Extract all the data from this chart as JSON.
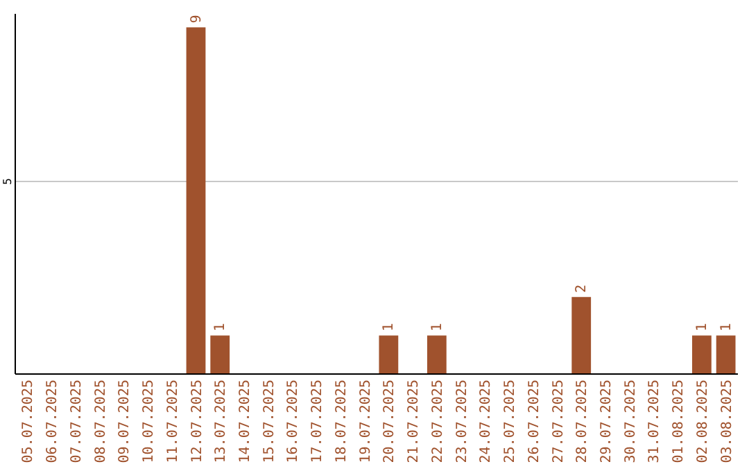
{
  "chart_data": {
    "type": "bar",
    "categories": [
      "05.07.2025",
      "06.07.2025",
      "07.07.2025",
      "08.07.2025",
      "09.07.2025",
      "10.07.2025",
      "11.07.2025",
      "12.07.2025",
      "13.07.2025",
      "14.07.2025",
      "15.07.2025",
      "16.07.2025",
      "17.07.2025",
      "18.07.2025",
      "19.07.2025",
      "20.07.2025",
      "21.07.2025",
      "22.07.2025",
      "23.07.2025",
      "24.07.2025",
      "25.07.2025",
      "26.07.2025",
      "27.07.2025",
      "28.07.2025",
      "29.07.2025",
      "30.07.2025",
      "31.07.2025",
      "01.08.2025",
      "02.08.2025",
      "03.08.2025"
    ],
    "values": [
      0,
      0,
      0,
      0,
      0,
      0,
      0,
      9,
      1,
      0,
      0,
      0,
      0,
      0,
      0,
      1,
      0,
      1,
      0,
      0,
      0,
      0,
      0,
      2,
      0,
      0,
      0,
      0,
      1,
      1
    ],
    "value_labels": [
      null,
      null,
      null,
      null,
      null,
      null,
      null,
      "9",
      "1",
      null,
      null,
      null,
      null,
      null,
      null,
      "1",
      null,
      "1",
      null,
      null,
      null,
      null,
      null,
      "2",
      null,
      null,
      null,
      null,
      "1",
      "1"
    ],
    "color": "#a0522d",
    "ylim": [
      0,
      9.35
    ],
    "yticks": [
      5
    ],
    "grid": "y"
  }
}
